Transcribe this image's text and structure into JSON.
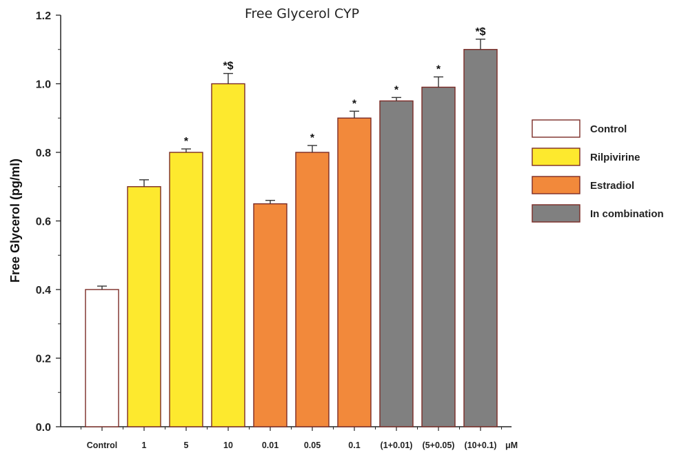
{
  "chart_data": {
    "type": "bar",
    "title": "Free Glycerol CYP",
    "ylabel": "Free Glycerol (pg/ml)",
    "xunit": "μM",
    "ylim": [
      0,
      1.2
    ],
    "yticks": [
      "0.0",
      "0.2",
      "0.4",
      "0.6",
      "0.8",
      "1.0",
      "1.2"
    ],
    "categories": [
      "Control",
      "1",
      "5",
      "10",
      "0.01",
      "0.05",
      "0.1",
      "(1+0.01)",
      "(5+0.05)",
      "(10+0.1)"
    ],
    "values": [
      0.4,
      0.7,
      0.8,
      1.0,
      0.65,
      0.8,
      0.9,
      0.95,
      0.99,
      1.1
    ],
    "errors": [
      0.01,
      0.02,
      0.01,
      0.03,
      0.01,
      0.02,
      0.02,
      0.01,
      0.03,
      0.03
    ],
    "groups": [
      "Control",
      "Rilpivirine",
      "Rilpivirine",
      "Rilpivirine",
      "Estradiol",
      "Estradiol",
      "Estradiol",
      "In combination",
      "In combination",
      "In combination"
    ],
    "significance": [
      "",
      "",
      "*",
      "*$",
      "",
      "*",
      "*",
      "*",
      "*",
      "*$"
    ],
    "legend": [
      {
        "name": "Control",
        "color": "#ffffff"
      },
      {
        "name": "Rilpivirine",
        "color": "#fde92e"
      },
      {
        "name": "Estradiol",
        "color": "#f2893b"
      },
      {
        "name": "In combination",
        "color": "#808080"
      }
    ],
    "legend_position": "right",
    "bar_edge_color": "#7a2a25"
  }
}
